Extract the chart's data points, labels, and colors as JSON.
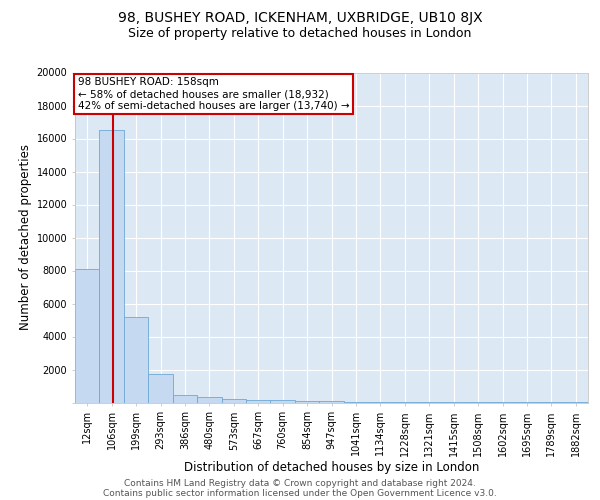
{
  "title_line1": "98, BUSHEY ROAD, ICKENHAM, UXBRIDGE, UB10 8JX",
  "title_line2": "Size of property relative to detached houses in London",
  "xlabel": "Distribution of detached houses by size in London",
  "ylabel": "Number of detached properties",
  "bin_labels": [
    "12sqm",
    "106sqm",
    "199sqm",
    "293sqm",
    "386sqm",
    "480sqm",
    "573sqm",
    "667sqm",
    "760sqm",
    "854sqm",
    "947sqm",
    "1041sqm",
    "1134sqm",
    "1228sqm",
    "1321sqm",
    "1415sqm",
    "1508sqm",
    "1602sqm",
    "1695sqm",
    "1789sqm",
    "1882sqm"
  ],
  "bar_heights": [
    8100,
    16500,
    5200,
    1750,
    450,
    330,
    220,
    160,
    130,
    100,
    80,
    60,
    40,
    25,
    15,
    10,
    7,
    5,
    3,
    2,
    1
  ],
  "bar_color": "#c5d9f0",
  "bar_edge_color": "#6fa8d6",
  "background_color": "#dce9f5",
  "grid_color": "#ffffff",
  "property_line_label": "98 BUSHEY ROAD: 158sqm",
  "annotation_line1": "← 58% of detached houses are smaller (18,932)",
  "annotation_line2": "42% of semi-detached houses are larger (13,740) →",
  "annotation_box_facecolor": "#ffffff",
  "annotation_box_edgecolor": "#cc0000",
  "vline_color": "#cc0000",
  "ylim": [
    0,
    20000
  ],
  "yticks": [
    0,
    2000,
    4000,
    6000,
    8000,
    10000,
    12000,
    14000,
    16000,
    18000,
    20000
  ],
  "footnote_line1": "Contains HM Land Registry data © Crown copyright and database right 2024.",
  "footnote_line2": "Contains public sector information licensed under the Open Government Licence v3.0.",
  "title_fontsize": 10,
  "subtitle_fontsize": 9,
  "ylabel_text": "Number of detached properties",
  "axis_label_fontsize": 8.5,
  "tick_fontsize": 7,
  "annotation_fontsize": 7.5,
  "footnote_fontsize": 6.5
}
